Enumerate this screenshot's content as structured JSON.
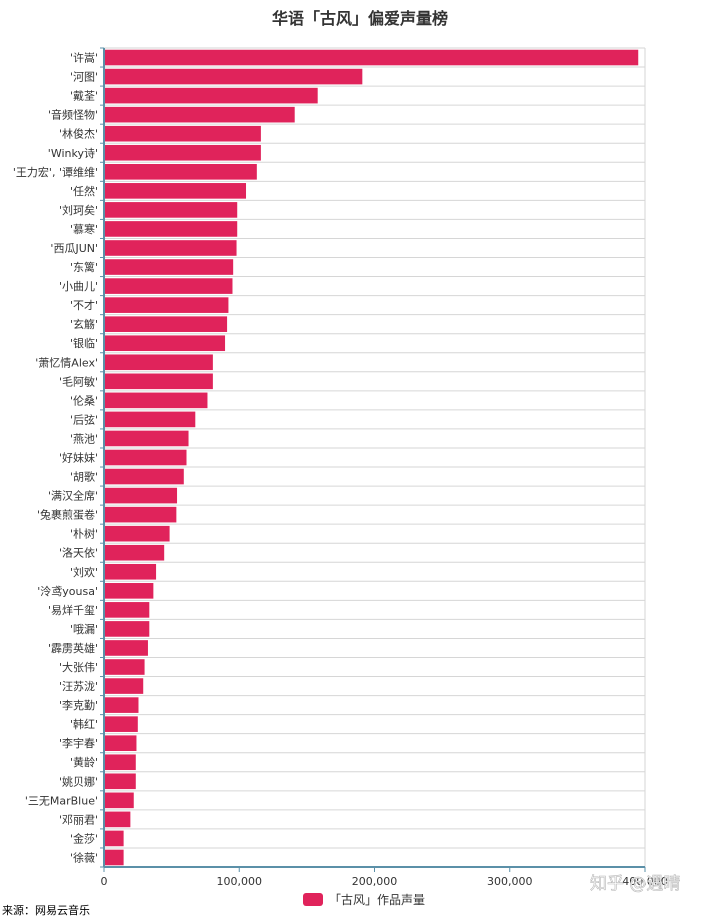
{
  "chart_data": {
    "type": "bar",
    "orientation": "horizontal",
    "title": "华语「古风」偏爱声量榜",
    "categories": [
      "'许嵩'",
      "'河图'",
      "'戴荃'",
      "'音频怪物'",
      "'林俊杰'",
      "'Winky诗'",
      "'王力宏', '谭维维'",
      "'任然'",
      "'刘珂矣'",
      "'慕寒'",
      "'西瓜JUN'",
      "'东篱'",
      "'小曲儿'",
      "'不才'",
      "'玄觞'",
      "'银临'",
      "'萧忆情Alex'",
      "'毛阿敏'",
      "'伦桑'",
      "'后弦'",
      "'燕池'",
      "'好妹妹'",
      "'胡歌'",
      "'满汉全席'",
      "'兔裹煎蛋卷'",
      "'朴树'",
      "'洛天依'",
      "'刘欢'",
      "'泠鸢yousa'",
      "'易烊千玺'",
      "'哦漏'",
      "'霹雳英雄'",
      "'大张伟'",
      "'汪苏泷'",
      "'李克勤'",
      "'韩红'",
      "'李宇春'",
      "'黄龄'",
      "'姚贝娜'",
      "'三无MarBlue'",
      "'邓丽君'",
      "'金莎'",
      "'徐薇'"
    ],
    "series": [
      {
        "name": "「古风」作品声量",
        "values": [
          395000,
          191000,
          158000,
          141000,
          116000,
          116000,
          113000,
          105000,
          98500,
          98500,
          98000,
          95500,
          95000,
          92000,
          91000,
          89500,
          80500,
          80500,
          76500,
          67500,
          62500,
          61000,
          59000,
          54000,
          53500,
          48500,
          44500,
          38500,
          36500,
          33500,
          33500,
          32500,
          30000,
          29000,
          25500,
          25000,
          24000,
          23500,
          23500,
          22000,
          19500,
          14500,
          14500
        ]
      }
    ],
    "xlim": [
      0,
      400000
    ],
    "xticks": [
      0,
      100000,
      200000,
      300000,
      400000
    ],
    "xtick_labels": [
      "0",
      "100,000",
      "200,000",
      "300,000",
      "400,000"
    ],
    "grid": "horizontal",
    "legend_position": "bottom"
  },
  "source": "来源：网易云音乐",
  "watermark": "知乎 @遇晴",
  "colors": {
    "bar": "#e0235b",
    "axis": "#5b90a8",
    "grid": "#d6d6d6",
    "text": "#333333"
  }
}
